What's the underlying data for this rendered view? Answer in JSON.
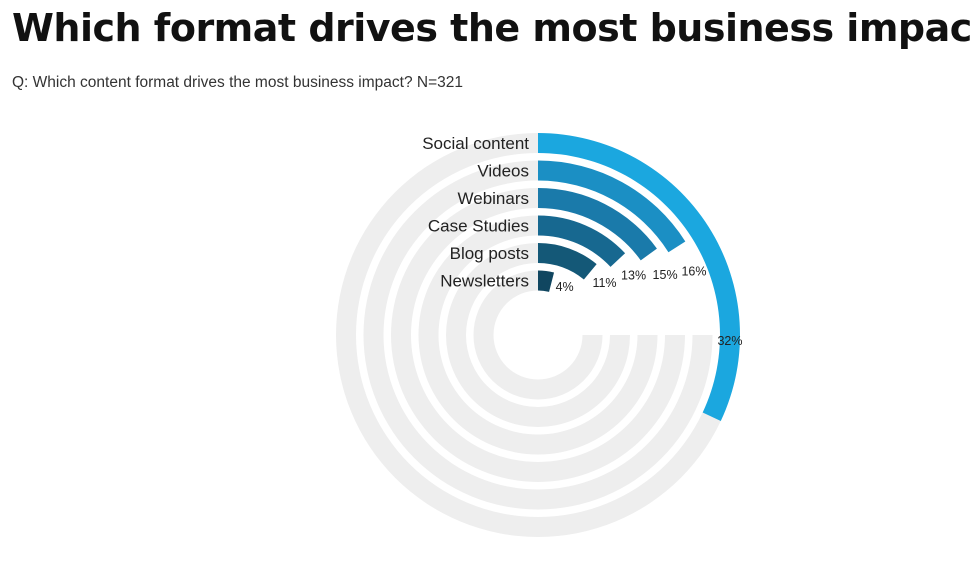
{
  "title": "Which format drives the most business impact",
  "subtitle": "Q: Which content format drives the most business impact? N=321",
  "chart_data": {
    "type": "radial-bar",
    "scale_max": 100,
    "categories": [
      "Social content",
      "Videos",
      "Webinars",
      "Case Studies",
      "Blog posts",
      "Newsletters"
    ],
    "values": [
      32,
      16,
      15,
      13,
      11,
      4
    ],
    "value_labels": [
      "32%",
      "16%",
      "15%",
      "13%",
      "11%",
      "4%"
    ],
    "colors": [
      "#1ba7df",
      "#1b8fc4",
      "#1a7aaa",
      "#176890",
      "#145877",
      "#104660"
    ],
    "track_color": "#eeeeee"
  }
}
